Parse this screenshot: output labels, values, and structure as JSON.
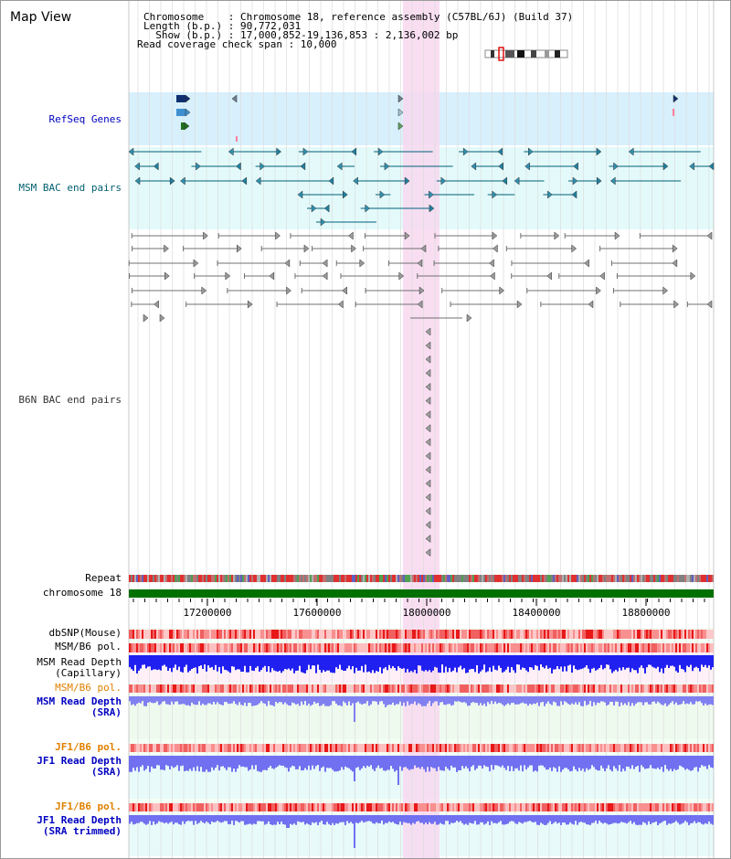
{
  "header": {
    "title": "Map View",
    "chromosome_line": "Chromosome    : Chromosome 18, reference assembly (C57BL/6J) (Build 37)",
    "length_line": "Length (b.p.) : 90,772,031",
    "show_line": "  Show (b.p.) : 17,000,852-19,136,853 : 2,136,002 bp",
    "span_line": "Read coverage check span : 10,000"
  },
  "tracks": {
    "refseq": "RefSeq Genes",
    "msm_bac": "MSM BAC end pairs",
    "b6n_bac": "B6N BAC end pairs",
    "repeat": "Repeat",
    "chromosome": "chromosome 18"
  },
  "axis": {
    "ticks": [
      "17200000",
      "17600000",
      "18000000",
      "18400000",
      "18800000"
    ]
  },
  "lower_tracks": {
    "dbsnp": "dbSNP(Mouse)",
    "msm_pol": "MSM/B6 pol.",
    "msm_depth_cap_1": "MSM Read Depth",
    "msm_depth_cap_2": "(Capillary)",
    "msm_pol2": "MSM/B6 pol.",
    "msm_sra_1": "MSM Read Depth",
    "msm_sra_2": "(SRA)",
    "jf1_pol": "JF1/B6 pol.",
    "jf1_sra_1": "JF1 Read Depth",
    "jf1_sra_2": "(SRA)",
    "jf1_pol2": "JF1/B6 pol.",
    "jf1_trim_1": "JF1 Read Depth",
    "jf1_trim_2": "(SRA trimmed)"
  },
  "colors": {
    "highlight": "#f8d8f0",
    "refseq_bg": "#d8f0fc",
    "msm_bg": "#e4fafa",
    "msm_bac": "#00607a",
    "b6n_bac": "#707070",
    "chromosome_bar": "#007000",
    "depth_blue": "#4040f0",
    "pol_red": "#f08080",
    "label_blue": "#0000c0",
    "label_teal": "#006070",
    "label_orange": "#e08000"
  }
}
